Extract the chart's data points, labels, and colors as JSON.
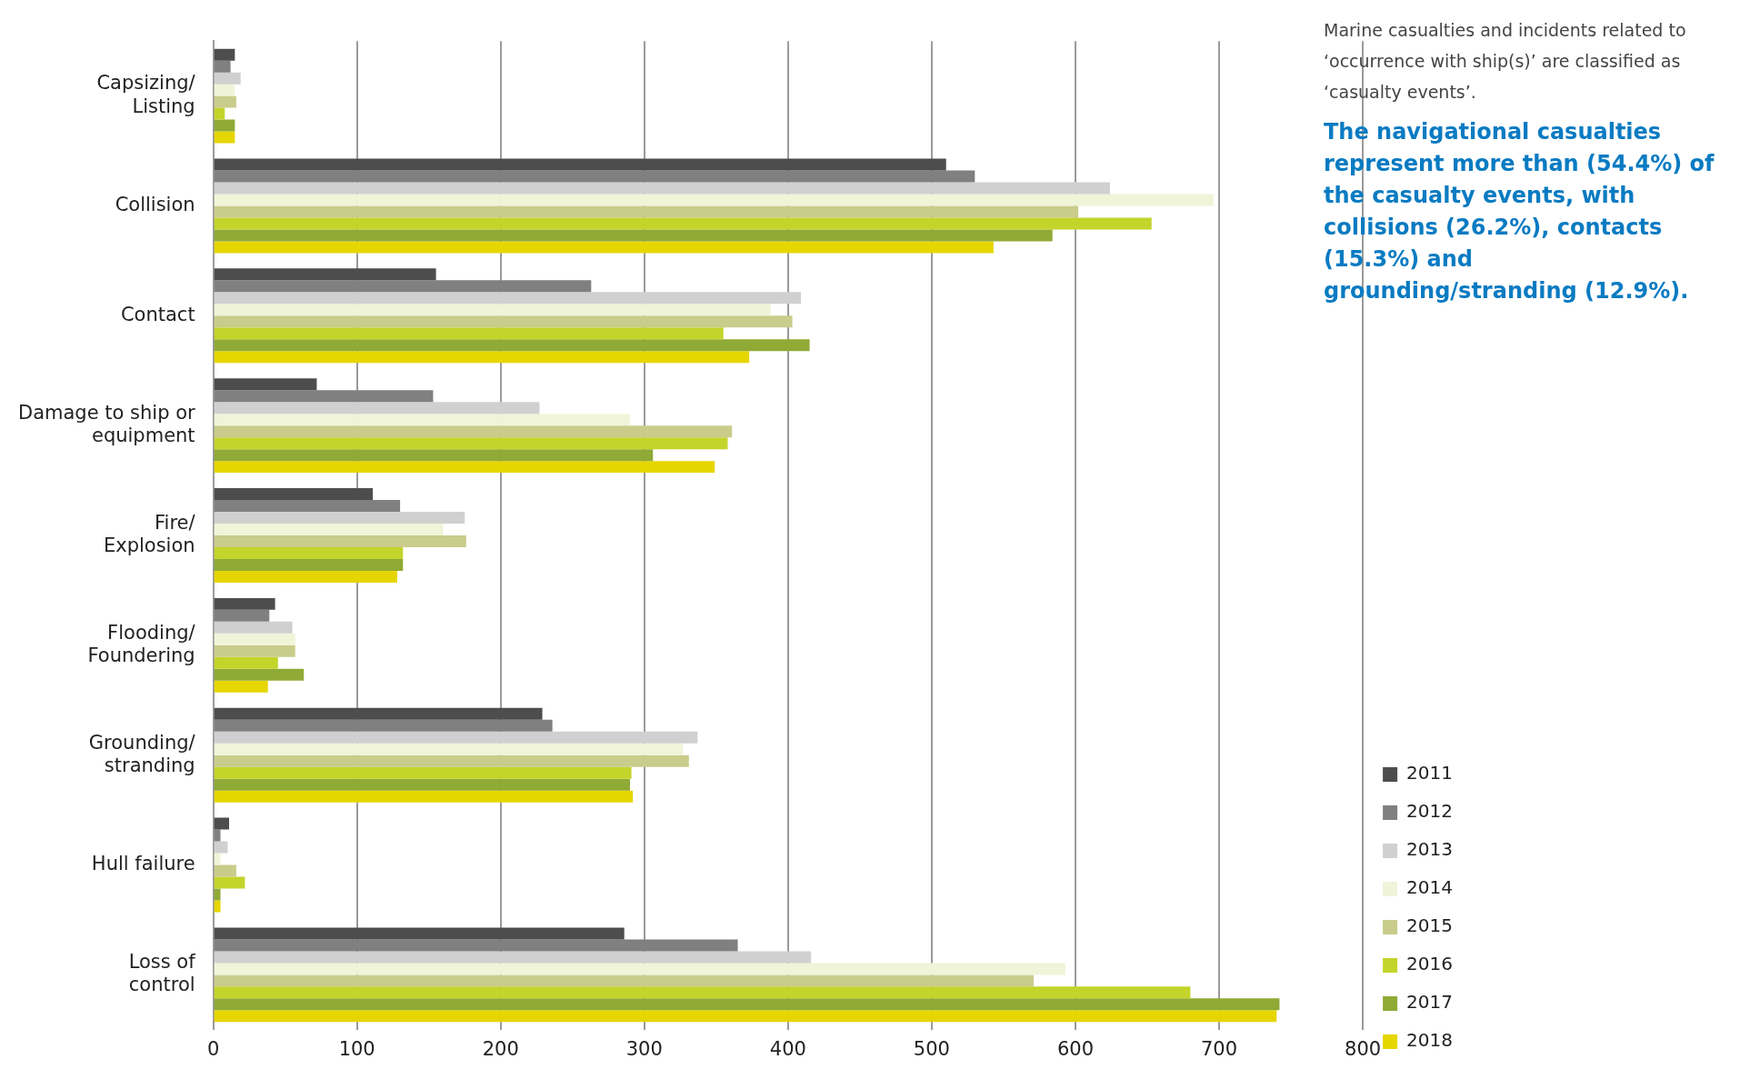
{
  "chart_data": {
    "type": "bar",
    "orientation": "horizontal",
    "categories": [
      "Capsizing/ Listing",
      "Collision",
      "Contact",
      "Damage to ship or equipment",
      "Fire/ Explosion",
      "Flooding/ Foundering",
      "Grounding/ stranding",
      "Hull failure",
      "Loss of control"
    ],
    "series": [
      {
        "name": "2011",
        "color": "#4d4d4d",
        "values": [
          15,
          510,
          155,
          72,
          111,
          43,
          229,
          11,
          286
        ]
      },
      {
        "name": "2012",
        "color": "#808080",
        "values": [
          12,
          530,
          263,
          153,
          130,
          39,
          236,
          5,
          365
        ]
      },
      {
        "name": "2013",
        "color": "#d0d0d0",
        "values": [
          19,
          624,
          409,
          227,
          175,
          55,
          337,
          10,
          416
        ]
      },
      {
        "name": "2014",
        "color": "#f0f4d8",
        "values": [
          15,
          696,
          388,
          290,
          160,
          57,
          327,
          5,
          593
        ]
      },
      {
        "name": "2015",
        "color": "#c9cc8a",
        "values": [
          16,
          602,
          403,
          361,
          176,
          57,
          331,
          16,
          571
        ]
      },
      {
        "name": "2016",
        "color": "#c3d42a",
        "values": [
          8,
          653,
          355,
          358,
          132,
          45,
          291,
          22,
          680
        ]
      },
      {
        "name": "2017",
        "color": "#8faa35",
        "values": [
          15,
          584,
          415,
          306,
          132,
          63,
          290,
          5,
          742
        ]
      },
      {
        "name": "2018",
        "color": "#e6d600",
        "values": [
          15,
          543,
          373,
          349,
          128,
          38,
          292,
          5,
          740
        ]
      }
    ],
    "xlim": [
      0,
      800
    ],
    "xticks": [
      0,
      100,
      200,
      300,
      400,
      500,
      600,
      700,
      800
    ],
    "grid": "x",
    "legend": "bottom right",
    "annotations": [
      "Marine casualties and incidents related to ‘occurrence with ship(s)’ are classified as ‘casualty events’.",
      "The navigational casualties represent more than (54.4%) of the casualty events, with collisions (26.2%), contacts (15.3%) and grounding/stranding (12.9%)."
    ]
  }
}
